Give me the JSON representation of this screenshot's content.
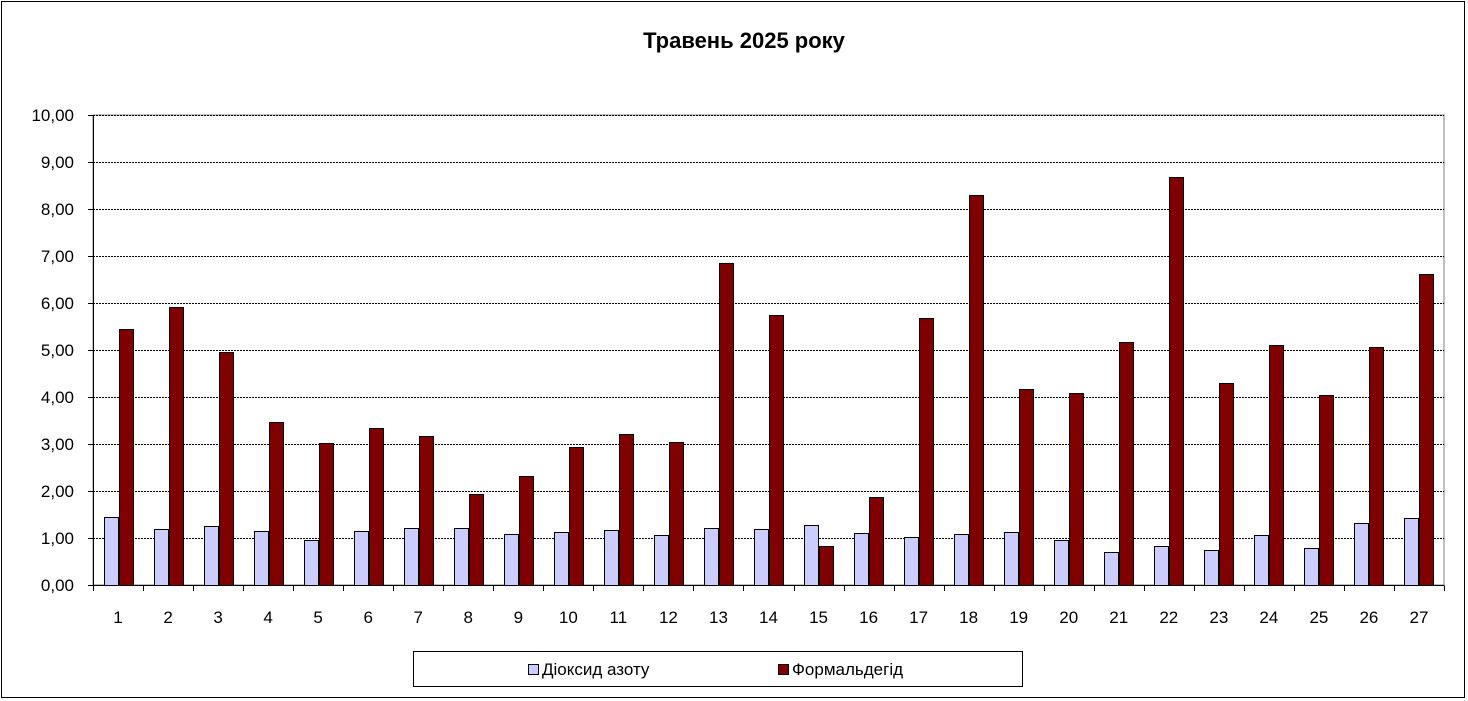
{
  "chart_data": {
    "type": "bar",
    "title": "Травень 2025 року",
    "xlabel": "",
    "ylabel": "",
    "ylim": [
      0,
      10
    ],
    "yticks": [
      "0,00",
      "1,00",
      "2,00",
      "3,00",
      "4,00",
      "5,00",
      "6,00",
      "7,00",
      "8,00",
      "9,00",
      "10,00"
    ],
    "grid": true,
    "legend_position": "bottom",
    "categories": [
      "1",
      "2",
      "3",
      "4",
      "5",
      "6",
      "7",
      "8",
      "9",
      "10",
      "11",
      "12",
      "13",
      "14",
      "15",
      "16",
      "17",
      "18",
      "19",
      "20",
      "21",
      "22",
      "23",
      "24",
      "25",
      "26",
      "27"
    ],
    "series": [
      {
        "name": "Діоксид азоту",
        "color": "#CCCCFF",
        "values": [
          1.45,
          1.19,
          1.25,
          1.15,
          0.96,
          1.15,
          1.21,
          1.21,
          1.08,
          1.13,
          1.17,
          1.07,
          1.21,
          1.19,
          1.27,
          1.11,
          1.02,
          1.09,
          1.13,
          0.96,
          0.7,
          0.83,
          0.75,
          1.06,
          0.79,
          1.32,
          1.42
        ]
      },
      {
        "name": "Формальдегід",
        "color": "#800000",
        "values": [
          5.45,
          5.92,
          4.95,
          3.47,
          3.03,
          3.35,
          3.17,
          1.94,
          2.32,
          2.94,
          3.21,
          3.05,
          6.86,
          5.75,
          0.84,
          1.88,
          5.69,
          8.29,
          4.16,
          4.09,
          5.16,
          8.69,
          4.29,
          5.11,
          4.05,
          5.07,
          6.62
        ]
      }
    ]
  }
}
